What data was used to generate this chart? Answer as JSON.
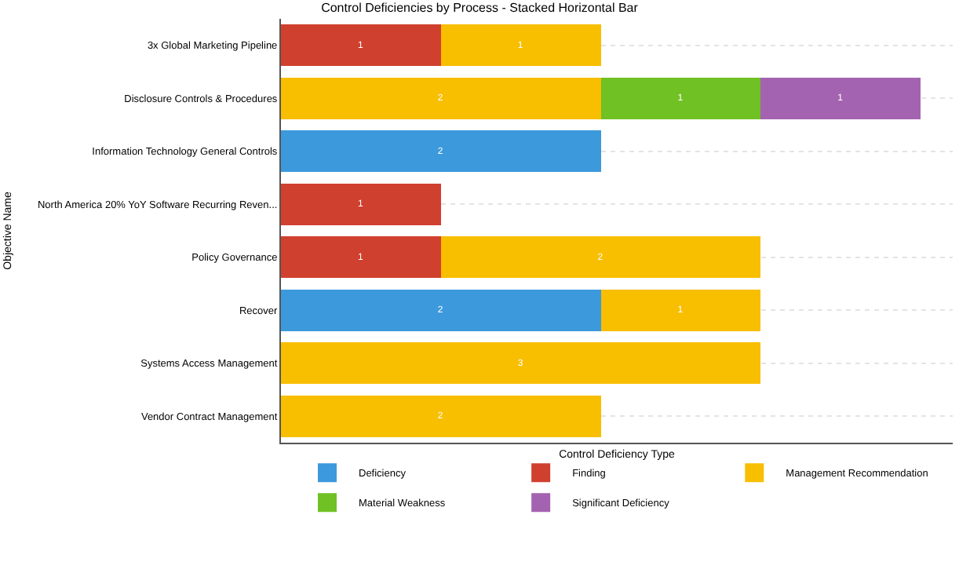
{
  "chart_data": {
    "type": "bar",
    "orientation": "horizontal",
    "stacked": true,
    "title": "Control Deficiencies by Process - Stacked Horizontal Bar",
    "xlabel": "Control Deficiency Type",
    "ylabel": "Objective Name",
    "categories": [
      "3x Global Marketing Pipeline",
      "Disclosure Controls & Procedures",
      "Information Technology General Controls",
      "North America 20% YoY Software Recurring Reven...",
      "Policy Governance",
      "Recover",
      "Systems Access Management",
      "Vendor Contract Management"
    ],
    "series": [
      {
        "name": "Deficiency",
        "color": "#3c99dc",
        "values": [
          null,
          null,
          2,
          null,
          null,
          2,
          null,
          null
        ]
      },
      {
        "name": "Finding",
        "color": "#d0402f",
        "values": [
          1,
          null,
          null,
          1,
          1,
          null,
          null,
          null
        ]
      },
      {
        "name": "Management Recommendation",
        "color": "#f8be00",
        "values": [
          1,
          2,
          null,
          null,
          2,
          1,
          3,
          2
        ]
      },
      {
        "name": "Material Weakness",
        "color": "#6fc124",
        "values": [
          null,
          1,
          null,
          null,
          null,
          null,
          null,
          null
        ]
      },
      {
        "name": "Significant Deficiency",
        "color": "#a463b0",
        "values": [
          null,
          1,
          null,
          null,
          null,
          null,
          null,
          null
        ]
      }
    ],
    "xlim": [
      0,
      4.2
    ],
    "tick_labels": "y",
    "grid": "y",
    "legend": "bottom",
    "data_labels": true
  }
}
